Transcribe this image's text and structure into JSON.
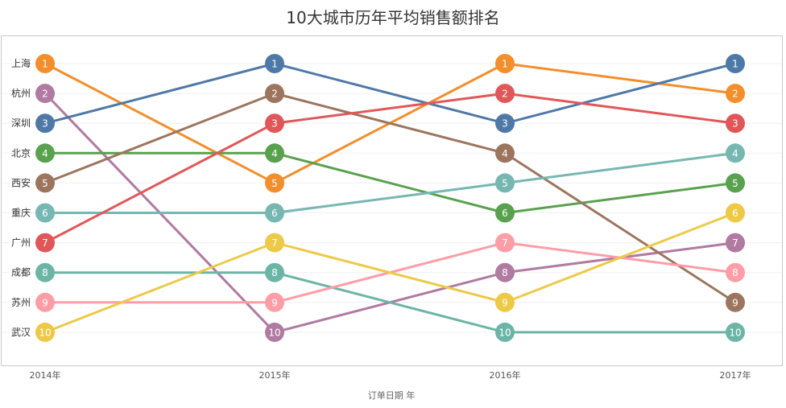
{
  "chart_data": {
    "type": "line",
    "title": "10大城市历年平均销售额排名",
    "xlabel": "订单日期 年",
    "ylabel": "",
    "categories": [
      "2014年",
      "2015年",
      "2016年",
      "2017年"
    ],
    "ylim": [
      1,
      10
    ],
    "y_reversed": true,
    "grid": true,
    "series": [
      {
        "name": "上海",
        "color": "#f28e2b",
        "values": [
          1,
          5,
          1,
          2
        ]
      },
      {
        "name": "杭州",
        "color": "#b07aa1",
        "values": [
          2,
          10,
          8,
          7
        ]
      },
      {
        "name": "深圳",
        "color": "#4e79a7",
        "values": [
          3,
          1,
          3,
          1
        ]
      },
      {
        "name": "北京",
        "color": "#59a14f",
        "values": [
          4,
          4,
          6,
          5
        ]
      },
      {
        "name": "西安",
        "color": "#9c755f",
        "values": [
          5,
          2,
          4,
          9
        ]
      },
      {
        "name": "重庆",
        "color": "#76b7b2",
        "values": [
          6,
          6,
          5,
          4
        ]
      },
      {
        "name": "广州",
        "color": "#e15759",
        "values": [
          7,
          3,
          2,
          3
        ]
      },
      {
        "name": "成都",
        "color": "#6cb5a6",
        "values": [
          8,
          8,
          10,
          10
        ]
      },
      {
        "name": "苏州",
        "color": "#ff9da7",
        "values": [
          9,
          9,
          7,
          8
        ]
      },
      {
        "name": "武汉",
        "color": "#edc948",
        "values": [
          10,
          7,
          9,
          6
        ]
      }
    ]
  }
}
